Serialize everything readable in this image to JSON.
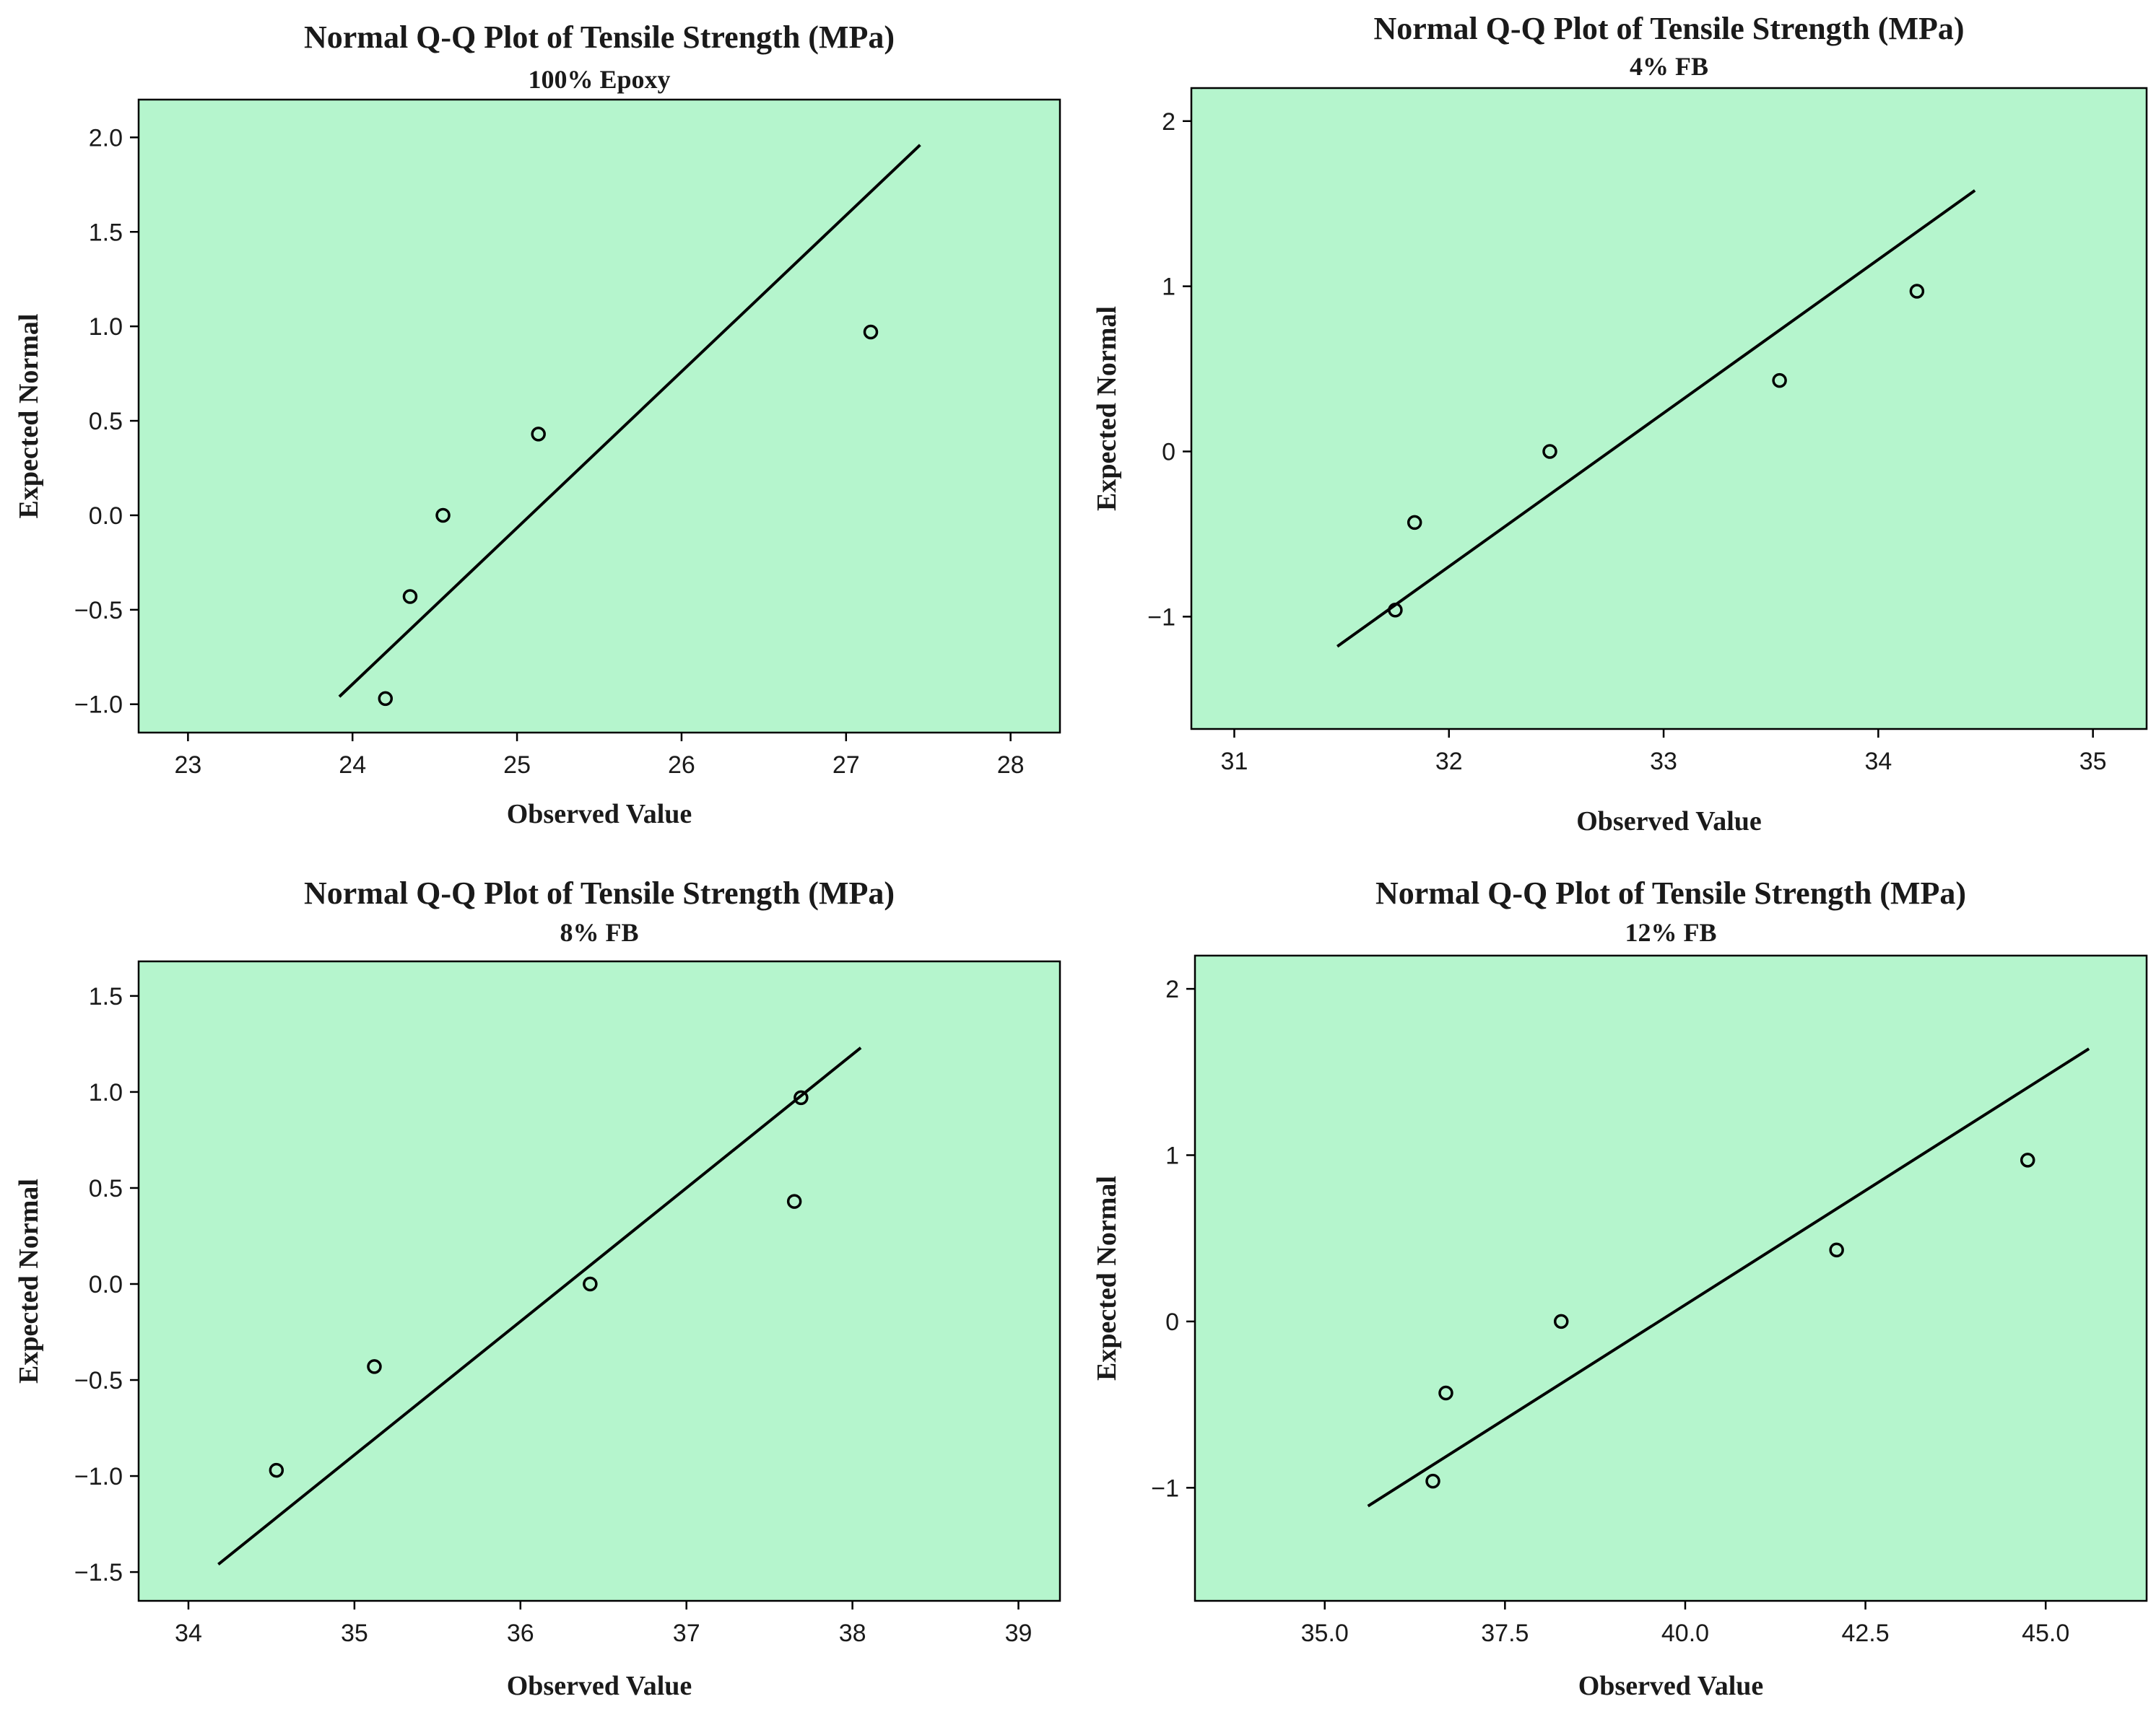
{
  "chart_data": [
    {
      "type": "scatter",
      "title": "Normal Q-Q Plot of Tensile Strength (MPa)",
      "subtitle": "100% Epoxy",
      "xlabel": "Observed Value",
      "ylabel": "Expected Normal",
      "xlim": [
        22.7,
        28.3
      ],
      "ylim": [
        -1.15,
        2.2
      ],
      "xticks": [
        23,
        24,
        25,
        26,
        27,
        28
      ],
      "xtick_labels": [
        "23",
        "24",
        "25",
        "26",
        "27",
        "28"
      ],
      "yticks": [
        -1.0,
        -0.5,
        0.0,
        0.5,
        1.0,
        1.5,
        2.0
      ],
      "ytick_labels": [
        "−1.0",
        "−0.5",
        "0.0",
        "0.5",
        "1.0",
        "1.5",
        "2.0"
      ],
      "points": [
        {
          "x": 24.2,
          "y": -0.97
        },
        {
          "x": 24.35,
          "y": -0.43
        },
        {
          "x": 24.55,
          "y": 0.0
        },
        {
          "x": 25.13,
          "y": 0.43
        },
        {
          "x": 27.15,
          "y": 0.97
        }
      ],
      "reference_line": [
        [
          23.92,
          -0.96
        ],
        [
          27.45,
          1.96
        ]
      ],
      "grid": false,
      "background_color": "#b5f5cd"
    },
    {
      "type": "scatter",
      "title": "Normal Q-Q Plot of Tensile Strength (MPa)",
      "subtitle": "4% FB",
      "xlabel": "Observed Value",
      "ylabel": "Expected Normal",
      "xlim": [
        30.8,
        35.25
      ],
      "ylim": [
        -1.68,
        2.2
      ],
      "xticks": [
        31,
        32,
        33,
        34,
        35
      ],
      "xtick_labels": [
        "31",
        "32",
        "33",
        "34",
        "35"
      ],
      "yticks": [
        -1,
        0,
        1,
        2
      ],
      "ytick_labels": [
        "−1",
        "0",
        "1",
        "2"
      ],
      "points": [
        {
          "x": 31.75,
          "y": -0.96
        },
        {
          "x": 31.84,
          "y": -0.43
        },
        {
          "x": 32.47,
          "y": 0.0
        },
        {
          "x": 33.54,
          "y": 0.43
        },
        {
          "x": 34.18,
          "y": 0.97
        }
      ],
      "reference_line": [
        [
          31.48,
          -1.18
        ],
        [
          34.45,
          1.58
        ]
      ],
      "grid": false,
      "background_color": "#b5f5cd"
    },
    {
      "type": "scatter",
      "title": "Normal Q-Q Plot of Tensile Strength (MPa)",
      "subtitle": "8% FB",
      "xlabel": "Observed Value",
      "ylabel": "Expected Normal",
      "xlim": [
        33.7,
        39.25
      ],
      "ylim": [
        -1.65,
        1.68
      ],
      "xticks": [
        34,
        35,
        36,
        37,
        38,
        39
      ],
      "xtick_labels": [
        "34",
        "35",
        "36",
        "37",
        "38",
        "39"
      ],
      "yticks": [
        -1.5,
        -1.0,
        -0.5,
        0.0,
        0.5,
        1.0,
        1.5
      ],
      "ytick_labels": [
        "−1.5",
        "−1.0",
        "−0.5",
        "0.0",
        "0.5",
        "1.0",
        "1.5"
      ],
      "points": [
        {
          "x": 34.53,
          "y": -0.97
        },
        {
          "x": 35.12,
          "y": -0.43
        },
        {
          "x": 36.42,
          "y": 0.0
        },
        {
          "x": 37.65,
          "y": 0.43
        },
        {
          "x": 37.69,
          "y": 0.97
        }
      ],
      "reference_line": [
        [
          34.18,
          -1.46
        ],
        [
          38.05,
          1.23
        ]
      ],
      "grid": false,
      "background_color": "#b5f5cd"
    },
    {
      "type": "scatter",
      "title": "Normal Q-Q Plot of Tensile Strength (MPa)",
      "subtitle": "12% FB",
      "xlabel": "Observed Value",
      "ylabel": "Expected Normal",
      "xlim": [
        33.2,
        46.4
      ],
      "ylim": [
        -1.68,
        2.2
      ],
      "xticks": [
        35.0,
        37.5,
        40.0,
        42.5,
        45.0
      ],
      "xtick_labels": [
        "35.0",
        "37.5",
        "40.0",
        "42.5",
        "45.0"
      ],
      "yticks": [
        -1,
        0,
        1,
        2
      ],
      "ytick_labels": [
        "−1",
        "0",
        "1",
        "2"
      ],
      "points": [
        {
          "x": 36.5,
          "y": -0.96
        },
        {
          "x": 36.68,
          "y": -0.43
        },
        {
          "x": 38.28,
          "y": 0.0
        },
        {
          "x": 42.1,
          "y": 0.43
        },
        {
          "x": 44.75,
          "y": 0.97
        }
      ],
      "reference_line": [
        [
          35.6,
          -1.11
        ],
        [
          45.6,
          1.64
        ]
      ],
      "grid": false,
      "background_color": "#b5f5cd"
    }
  ]
}
